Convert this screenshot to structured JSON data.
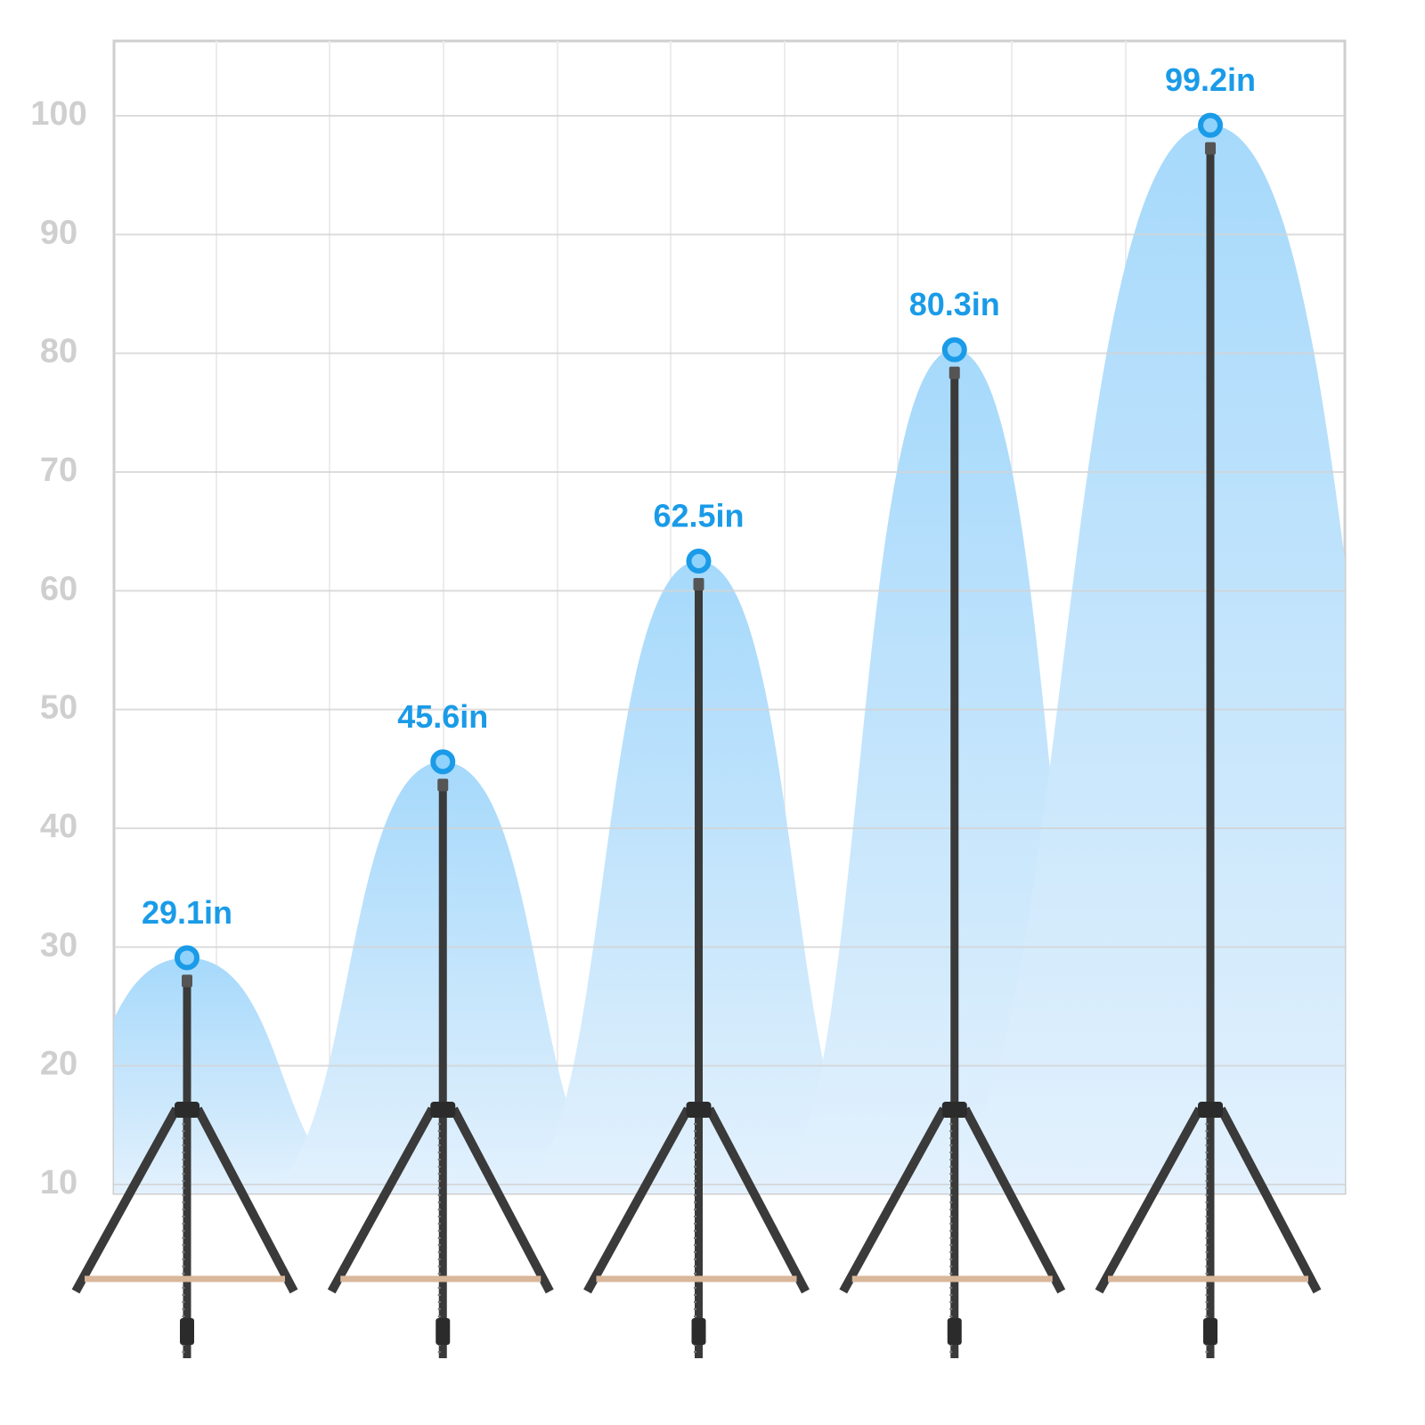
{
  "chart_data": {
    "type": "area",
    "values": [
      29.1,
      45.6,
      62.5,
      80.3,
      99.2
    ],
    "value_labels": [
      "29.1in",
      "45.6in",
      "62.5in",
      "80.3in",
      "99.2in"
    ],
    "color": "#1a9be8",
    "ylim": [
      9.25,
      106.3
    ],
    "yticks": [
      10,
      20,
      30,
      40,
      50,
      60,
      70,
      80,
      90,
      100
    ],
    "grid": true
  }
}
